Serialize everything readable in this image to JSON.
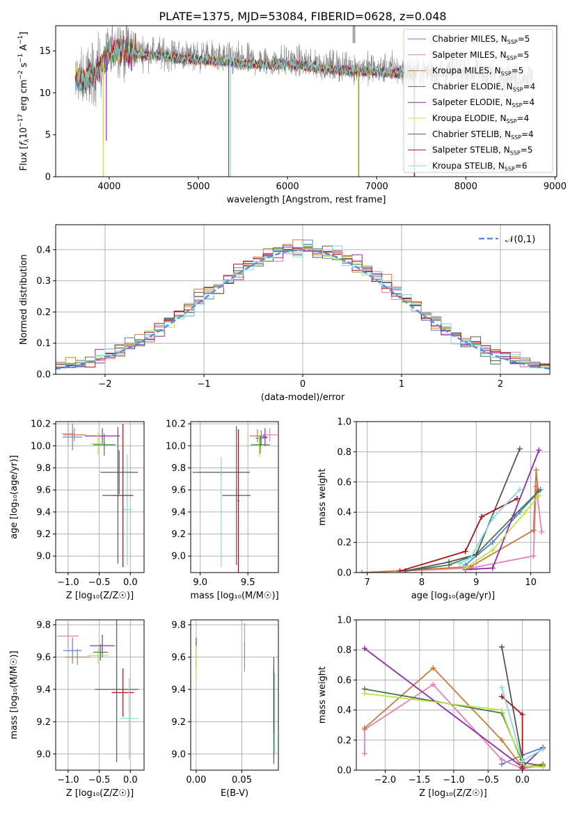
{
  "title": "PLATE=1375, MJD=53084, FIBERID=0628, z=0.048",
  "colors": {
    "Chabrier MILES": "#5b7fd6",
    "Salpeter MILES": "#e87fb6",
    "Kroupa MILES": "#c97a3a",
    "Chabrier ELODIE": "#3e7a4a",
    "Salpeter ELODIE": "#9326b0",
    "Kroupa ELODIE": "#bfe34a",
    "Chabrier STELIB": "#555555",
    "Salpeter STELIB": "#b01010",
    "Kroupa STELIB": "#7fdedc",
    "gauss": "#5b8cde",
    "grid": "#b0b0b0"
  },
  "chart_data": [
    {
      "id": "spectrum",
      "type": "line",
      "xlabel": "wavelength [Angstrom, rest frame]",
      "xticks": [
        "4000",
        "5000",
        "6000",
        "7000",
        "8000",
        "9000"
      ],
      "yticks": [
        "0",
        "5",
        "10",
        "15"
      ],
      "xlim": [
        3400,
        9020
      ],
      "ylim": [
        0,
        18
      ],
      "legend_position": "upper right",
      "legend": [
        {
          "model": "Chabrier MILES",
          "nssp": "5"
        },
        {
          "model": "Salpeter MILES",
          "nssp": "5"
        },
        {
          "model": "Kroupa MILES",
          "nssp": "5"
        },
        {
          "model": "Chabrier ELODIE",
          "nssp": "4"
        },
        {
          "model": "Salpeter ELODIE",
          "nssp": "4"
        },
        {
          "model": "Kroupa ELODIE",
          "nssp": "4"
        },
        {
          "model": "Chabrier STELIB",
          "nssp": "4"
        },
        {
          "model": "Salpeter STELIB",
          "nssp": "5"
        },
        {
          "model": "Kroupa STELIB",
          "nssp": "6"
        }
      ],
      "continuum": {
        "x": [
          3620,
          3700,
          3800,
          3900,
          4000,
          4100,
          4200,
          4400,
          4600,
          4800,
          5000,
          5200,
          5400,
          5600,
          5800,
          6000,
          6200,
          6400,
          6600,
          6800,
          7000,
          7200,
          7400,
          7600,
          7800,
          8000,
          8200,
          8400,
          8600,
          8750
        ],
        "y": [
          12.0,
          11.6,
          12.5,
          13.5,
          15.0,
          15.6,
          15.2,
          14.9,
          14.8,
          14.5,
          14.4,
          14.2,
          14.0,
          13.8,
          13.7,
          13.8,
          13.6,
          13.3,
          13.1,
          13.0,
          12.9,
          12.8,
          12.6,
          12.5,
          12.4,
          12.5,
          12.3,
          12.1,
          11.9,
          11.8
        ]
      },
      "data_range": [
        3620,
        8750
      ],
      "model_range": [
        3620,
        7420
      ],
      "model_noise": 0.9,
      "data_noise": 1.6,
      "dips": [
        {
          "x": 3933,
          "y": 0,
          "series": "Kroupa ELODIE"
        },
        {
          "x": 3968,
          "y": 4.3,
          "series": "Salpeter ELODIE"
        },
        {
          "x": 5340,
          "y": 0,
          "series": "Chabrier STELIB"
        },
        {
          "x": 5360,
          "y": 0,
          "series": "Kroupa STELIB"
        },
        {
          "x": 6795,
          "y": 0,
          "series": "Kroupa ELODIE"
        },
        {
          "x": 6800,
          "y": 0,
          "series": "Kroupa MILES"
        },
        {
          "x": 7420,
          "y": 0,
          "series": "Kroupa MILES"
        },
        {
          "x": 7425,
          "y": 0,
          "series": "Salpeter STELIB"
        }
      ]
    },
    {
      "id": "residuals",
      "type": "histogram",
      "xlabel": "(data-model)/error",
      "ylabel": "Normed distribution",
      "xticks": [
        "−2",
        "−1",
        "0",
        "1",
        "2"
      ],
      "yticks": [
        "0.0",
        "0.1",
        "0.2",
        "0.3",
        "0.4"
      ],
      "xlim": [
        -2.5,
        2.5
      ],
      "ylim": [
        0,
        0.48
      ],
      "bins": {
        "start": -2.5,
        "width": 0.1,
        "count": 50
      },
      "legend": "𝒩(0,1)",
      "legend_position": "upper right"
    },
    {
      "id": "age-vs-Z",
      "type": "scatter",
      "xlabel": "Z [log₁₀(Z/Z☉)]",
      "ylabel": "age  [log₁₀(age/yr)]",
      "xticks": [
        "−1.0",
        "−0.5",
        "0.0"
      ],
      "yticks": [
        "9.0",
        "9.2",
        "9.4",
        "9.6",
        "9.8",
        "10.0",
        "10.2"
      ],
      "xlim": [
        -1.2,
        0.22
      ],
      "ylim": [
        8.85,
        10.22
      ],
      "points": [
        {
          "series": "Kroupa STELIB",
          "x": -0.05,
          "y": 9.42,
          "xerr": 0.08,
          "yerr": 0.5
        },
        {
          "series": "Salpeter STELIB",
          "x": -0.12,
          "y": 9.55,
          "xerr": 0.15,
          "yerr": 0.65
        },
        {
          "series": "Chabrier STELIB",
          "x": -0.18,
          "y": 9.76,
          "xerr": 0.3,
          "yerr": 0.2
        },
        {
          "series": "Chabrier STELIB",
          "x": -0.2,
          "y": 9.55,
          "xerr": 0.25,
          "yerr": 0.62
        },
        {
          "series": "Salpeter ELODIE",
          "x": -0.45,
          "y": 10.09,
          "xerr": 0.28,
          "yerr": 0.07
        },
        {
          "series": "Kroupa ELODIE",
          "x": -0.52,
          "y": 10.02,
          "xerr": 0.12,
          "yerr": 0.1
        },
        {
          "series": "Chabrier ELODIE",
          "x": -0.42,
          "y": 10.01,
          "xerr": 0.18,
          "yerr": 0.1
        },
        {
          "series": "Salpeter MILES",
          "x": -1.0,
          "y": 10.11,
          "xerr": 0.1,
          "yerr": 0.1
        },
        {
          "series": "Chabrier MILES",
          "x": -0.93,
          "y": 10.08,
          "xerr": 0.16,
          "yerr": 0.12
        },
        {
          "series": "Kroupa MILES",
          "x": -0.9,
          "y": 10.1,
          "xerr": 0.18,
          "yerr": 0.06
        }
      ]
    },
    {
      "id": "age-vs-mass",
      "type": "scatter",
      "xlabel": "mass [log₁₀(M/M☉)]",
      "xticks": [
        "9.0",
        "9.5"
      ],
      "yticks": [
        "9.0",
        "9.2",
        "9.4",
        "9.6",
        "9.8",
        "10.0",
        "10.2"
      ],
      "xlim": [
        8.9,
        9.82
      ],
      "ylim": [
        8.85,
        10.22
      ],
      "points": [
        {
          "series": "Chabrier STELIB",
          "x": 9.22,
          "y": 9.76,
          "xerr": 0.3,
          "yerr": 0.02
        },
        {
          "series": "Kroupa STELIB",
          "x": 9.22,
          "y": 9.4,
          "xerr": 0.01,
          "yerr": 0.5
        },
        {
          "series": "Chabrier STELIB",
          "x": 9.38,
          "y": 9.55,
          "xerr": 0.15,
          "yerr": 0.63
        },
        {
          "series": "Salpeter STELIB",
          "x": 9.4,
          "y": 9.5,
          "xerr": 0.01,
          "yerr": 0.65
        },
        {
          "series": "Salpeter MILES",
          "x": 9.73,
          "y": 10.1,
          "xerr": 0.08,
          "yerr": 0.06
        },
        {
          "series": "Chabrier MILES",
          "x": 9.64,
          "y": 10.07,
          "xerr": 0.06,
          "yerr": 0.07
        },
        {
          "series": "Kroupa MILES",
          "x": 9.6,
          "y": 10.09,
          "xerr": 0.08,
          "yerr": 0.06
        },
        {
          "series": "Salpeter ELODIE",
          "x": 9.68,
          "y": 10.08,
          "xerr": 0.03,
          "yerr": 0.08
        },
        {
          "series": "Kroupa ELODIE",
          "x": 9.62,
          "y": 10.0,
          "xerr": 0.03,
          "yerr": 0.1
        },
        {
          "series": "Chabrier ELODIE",
          "x": 9.63,
          "y": 10.01,
          "xerr": 0.1,
          "yerr": 0.08
        }
      ]
    },
    {
      "id": "weight-vs-age",
      "type": "line",
      "xlabel": "age  [log₁₀(age/yr)]",
      "ylabel": "mass weight",
      "xticks": [
        "7",
        "8",
        "9",
        "10"
      ],
      "yticks": [
        "0.0",
        "0.2",
        "0.4",
        "0.6",
        "0.8",
        "1.0"
      ],
      "xlim": [
        6.8,
        10.35
      ],
      "ylim": [
        0,
        1.0
      ],
      "series": [
        {
          "name": "Chabrier MILES",
          "x": [
            8.8,
            9.3,
            9.8,
            10.18
          ],
          "y": [
            0.05,
            0.2,
            0.4,
            0.55
          ]
        },
        {
          "name": "Salpeter MILES",
          "x": [
            6.9,
            8.9,
            10.05,
            10.1,
            10.2
          ],
          "y": [
            0.0,
            0.03,
            0.11,
            0.57,
            0.27
          ]
        },
        {
          "name": "Kroupa MILES",
          "x": [
            6.9,
            8.0,
            8.9,
            10.05,
            10.1,
            10.13
          ],
          "y": [
            0.0,
            0.02,
            0.04,
            0.28,
            0.68,
            0.55
          ]
        },
        {
          "name": "Chabrier ELODIE",
          "x": [
            7.7,
            8.5,
            9.0,
            9.7,
            10.15
          ],
          "y": [
            0.01,
            0.05,
            0.12,
            0.38,
            0.54
          ]
        },
        {
          "name": "Salpeter ELODIE",
          "x": [
            8.8,
            9.3,
            10.15
          ],
          "y": [
            0.02,
            0.03,
            0.81
          ]
        },
        {
          "name": "Kroupa ELODIE",
          "x": [
            8.8,
            9.3,
            9.9,
            10.15
          ],
          "y": [
            0.03,
            0.15,
            0.4,
            0.51
          ]
        },
        {
          "name": "Chabrier STELIB",
          "x": [
            7.7,
            8.5,
            9.0,
            9.8
          ],
          "y": [
            0.01,
            0.07,
            0.12,
            0.82
          ]
        },
        {
          "name": "Salpeter STELIB",
          "x": [
            7.6,
            8.8,
            9.1,
            9.75
          ],
          "y": [
            0.01,
            0.14,
            0.37,
            0.49
          ]
        },
        {
          "name": "Kroupa STELIB",
          "x": [
            8.7,
            8.9,
            9.3,
            9.8
          ],
          "y": [
            0.06,
            0.1,
            0.36,
            0.55
          ]
        }
      ]
    },
    {
      "id": "mass-vs-Z",
      "type": "scatter",
      "xlabel": "Z [log₁₀(Z/Z☉)]",
      "ylabel": "mass [log₁₀(M/M☉)]",
      "xticks": [
        "−1.0",
        "−0.5",
        "0.0"
      ],
      "yticks": [
        "9.0",
        "9.2",
        "9.4",
        "9.6",
        "9.8"
      ],
      "xlim": [
        -1.2,
        0.22
      ],
      "ylim": [
        8.9,
        9.83
      ],
      "points": [
        {
          "series": "Salpeter MILES",
          "x": -1.0,
          "y": 9.73,
          "xerr": 0.17,
          "yerr": 0.08
        },
        {
          "series": "Chabrier MILES",
          "x": -0.93,
          "y": 9.64,
          "xerr": 0.15,
          "yerr": 0.08
        },
        {
          "series": "Kroupa MILES",
          "x": -0.85,
          "y": 9.6,
          "xerr": 0.2,
          "yerr": 0.05
        },
        {
          "series": "Salpeter ELODIE",
          "x": -0.45,
          "y": 9.67,
          "xerr": 0.2,
          "yerr": 0.07
        },
        {
          "series": "Kroupa ELODIE",
          "x": -0.52,
          "y": 9.61,
          "xerr": 0.17,
          "yerr": 0.05
        },
        {
          "series": "Chabrier ELODIE",
          "x": -0.48,
          "y": 9.63,
          "xerr": 0.12,
          "yerr": 0.05
        },
        {
          "series": "Chabrier STELIB",
          "x": -0.22,
          "y": 9.4,
          "xerr": 0.35,
          "yerr": 0.45
        },
        {
          "series": "Salpeter STELIB",
          "x": -0.12,
          "y": 9.38,
          "xerr": 0.18,
          "yerr": 0.15
        },
        {
          "series": "Kroupa STELIB",
          "x": -0.02,
          "y": 9.22,
          "xerr": 0.15,
          "yerr": 0.25
        }
      ]
    },
    {
      "id": "mass-vs-ebv",
      "type": "scatter",
      "xlabel": "E(B-V)",
      "xticks": [
        "0.00",
        "0.05"
      ],
      "yticks": [
        "9.0",
        "9.2",
        "9.4",
        "9.6",
        "9.8"
      ],
      "xlim": [
        -0.006,
        0.09
      ],
      "ylim": [
        8.9,
        9.83
      ],
      "points": [
        {
          "series": "Salpeter ELODIE",
          "x": 0.0,
          "y": 9.63,
          "xerr": 0.0,
          "yerr": 0.09
        },
        {
          "series": "Kroupa ELODIE",
          "x": 0.0,
          "y": 9.57,
          "xerr": 0.0,
          "yerr": 0.1
        },
        {
          "series": "Salpeter MILES",
          "x": 0.053,
          "y": 9.73,
          "xerr": 0.0,
          "yerr": 0.08
        },
        {
          "series": "Kroupa MILES",
          "x": 0.053,
          "y": 9.6,
          "xerr": 0.0,
          "yerr": 0.09
        },
        {
          "series": "Chabrier STELIB",
          "x": 0.085,
          "y": 9.27,
          "xerr": 0.0,
          "yerr": 0.33
        },
        {
          "series": "Salpeter STELIB",
          "x": 0.085,
          "y": 9.33,
          "xerr": 0.0,
          "yerr": 0.2
        },
        {
          "series": "Kroupa STELIB",
          "x": 0.086,
          "y": 9.25,
          "xerr": 0.0,
          "yerr": 0.25
        }
      ]
    },
    {
      "id": "weight-vs-Z",
      "type": "line",
      "xlabel": "Z [log₁₀(Z/Z☉)]",
      "ylabel": "mass weight",
      "xticks": [
        "−2.0",
        "−1.5",
        "−1.0",
        "−0.5",
        "0.0"
      ],
      "yticks": [
        "0.0",
        "0.2",
        "0.4",
        "0.6",
        "0.8",
        "1.0"
      ],
      "xlim": [
        -2.42,
        0.4
      ],
      "ylim": [
        0,
        1.0
      ],
      "series": [
        {
          "name": "Chabrier MILES",
          "x": [
            -0.3,
            0.0,
            0.3
          ],
          "y": [
            0.04,
            0.1,
            0.15
          ]
        },
        {
          "name": "Salpeter MILES",
          "x": [
            -2.3,
            -2.3,
            -1.3,
            -0.3,
            0.0,
            0.3
          ],
          "y": [
            0.11,
            0.27,
            0.57,
            0.07,
            0.01,
            0.03
          ]
        },
        {
          "name": "Kroupa MILES",
          "x": [
            -2.3,
            -1.3,
            -0.3,
            0.0,
            0.3
          ],
          "y": [
            0.28,
            0.68,
            0.2,
            0.02,
            0.04
          ]
        },
        {
          "name": "Chabrier ELODIE",
          "x": [
            -2.3,
            -0.3,
            0.0,
            0.3
          ],
          "y": [
            0.54,
            0.38,
            0.05,
            0.03
          ]
        },
        {
          "name": "Salpeter ELODIE",
          "x": [
            -2.3,
            0.0,
            0.3
          ],
          "y": [
            0.81,
            0.02,
            0.15
          ]
        },
        {
          "name": "Kroupa ELODIE",
          "x": [
            -2.3,
            -0.3,
            0.0,
            0.3
          ],
          "y": [
            0.51,
            0.4,
            0.03,
            0.02
          ]
        },
        {
          "name": "Chabrier STELIB",
          "x": [
            -0.3,
            0.0
          ],
          "y": [
            0.82,
            0.07
          ]
        },
        {
          "name": "Salpeter STELIB",
          "x": [
            -0.3,
            0.0,
            0.0
          ],
          "y": [
            0.49,
            0.37,
            0.01
          ]
        },
        {
          "name": "Kroupa STELIB",
          "x": [
            -0.3,
            0.0,
            0.3
          ],
          "y": [
            0.55,
            0.06,
            0.14
          ]
        }
      ]
    }
  ]
}
